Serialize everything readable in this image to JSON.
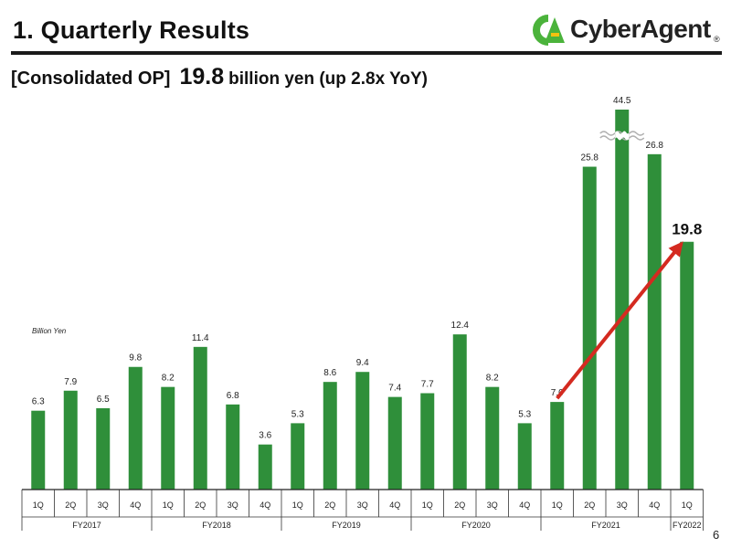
{
  "header": {
    "title": "1.  Quarterly Results",
    "logo_text": "CyberAgent",
    "logo_mark": "CA",
    "logo_reg": "®"
  },
  "subtitle": {
    "bracket": "[Consolidated OP]",
    "value": "19.8",
    "rest": "billion yen (up 2.8x YoY)"
  },
  "unit_label": "Billion Yen",
  "page_number": "6",
  "colors": {
    "bar": "#2f8f3a",
    "arrow": "#d42a20",
    "logo_green": "#4bb33b",
    "logo_yellow": "#f2c20f"
  },
  "chart_data": {
    "type": "bar",
    "title": "",
    "ylabel": "Billion Yen",
    "xlabel": "",
    "categories": [
      "1Q",
      "2Q",
      "3Q",
      "4Q",
      "1Q",
      "2Q",
      "3Q",
      "4Q",
      "1Q",
      "2Q",
      "3Q",
      "4Q",
      "1Q",
      "2Q",
      "3Q",
      "4Q",
      "1Q",
      "2Q",
      "3Q",
      "4Q",
      "1Q"
    ],
    "values": [
      6.3,
      7.9,
      6.5,
      9.8,
      8.2,
      11.4,
      6.8,
      3.6,
      5.3,
      8.6,
      9.4,
      7.4,
      7.7,
      12.4,
      8.2,
      5.3,
      7.0,
      25.8,
      44.5,
      26.8,
      19.8
    ],
    "value_labels": [
      "6.3",
      "7.9",
      "6.5",
      "9.8",
      "8.2",
      "11.4",
      "6.8",
      "3.6",
      "5.3",
      "8.6",
      "9.4",
      "7.4",
      "7.7",
      "12.4",
      "8.2",
      "5.3",
      "7.0",
      "25.8",
      "44.5",
      "26.8",
      "19.8"
    ],
    "fiscal_years": [
      {
        "label": "FY2017",
        "count": 4
      },
      {
        "label": "FY2018",
        "count": 4
      },
      {
        "label": "FY2019",
        "count": 4
      },
      {
        "label": "FY2020",
        "count": 4
      },
      {
        "label": "FY2021",
        "count": 4
      },
      {
        "label": "FY2022",
        "count": 1
      }
    ],
    "axis_break_on_index": 18,
    "highlight_index": 20,
    "arrow_from_index": 16,
    "arrow_to_index": 20,
    "grid": false
  }
}
